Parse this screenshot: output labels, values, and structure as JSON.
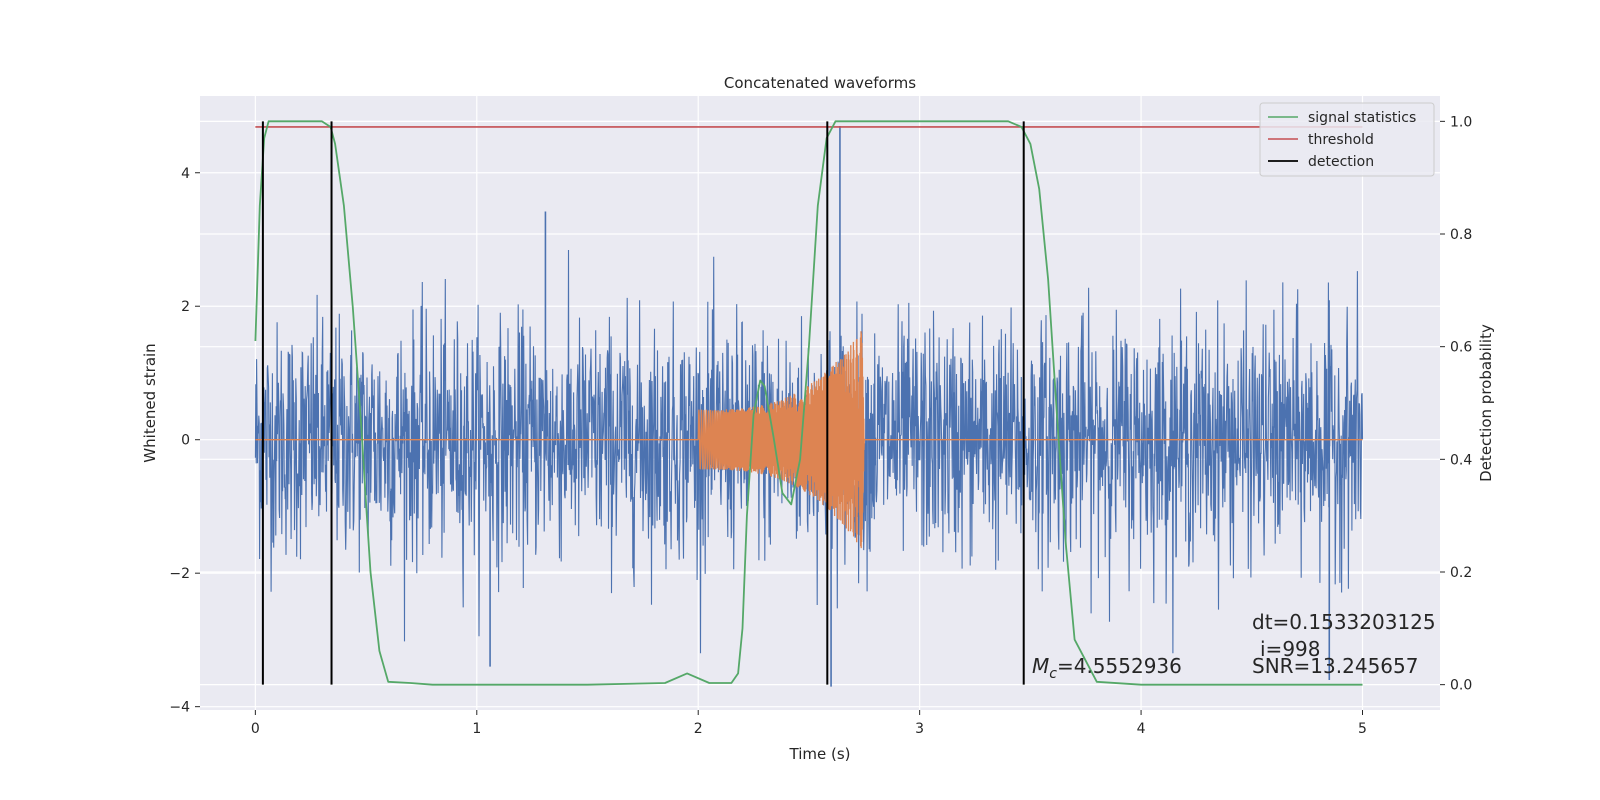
{
  "chart_data": {
    "type": "line",
    "title": "Concatenated waveforms",
    "xlabel": "Time (s)",
    "ylabel_left": "Whitened strain",
    "ylabel_right": "Detection probability",
    "xlim": [
      -0.25,
      5.35
    ],
    "ylim_left": [
      -4.05,
      5.15
    ],
    "ylim_right": [
      -0.045,
      1.045
    ],
    "x_ticks": [
      0,
      1,
      2,
      3,
      4,
      5
    ],
    "y_ticks_left": [
      -4,
      -2,
      0,
      2,
      4
    ],
    "y_ticks_right": [
      0.0,
      0.2,
      0.4,
      0.6,
      0.8,
      1.0
    ],
    "tick_labels": {
      "x": [
        "0",
        "1",
        "2",
        "3",
        "4",
        "5"
      ],
      "y_left": [
        "−4",
        "−2",
        "0",
        "2",
        "4"
      ],
      "y_right": [
        "0.0",
        "0.2",
        "0.4",
        "0.6",
        "0.8",
        "1.0"
      ]
    },
    "grid": true,
    "legend_position": "top-right",
    "series": [
      {
        "name": "signal statistics",
        "axis": "right",
        "color": "#55a868",
        "x": [
          0,
          0.02,
          0.04,
          0.06,
          0.1,
          0.2,
          0.3,
          0.34,
          0.36,
          0.4,
          0.44,
          0.48,
          0.5,
          0.52,
          0.56,
          0.6,
          0.7,
          0.8,
          1.0,
          1.5,
          1.85,
          1.95,
          2.05,
          2.15,
          2.18,
          2.2,
          2.22,
          2.25,
          2.28,
          2.3,
          2.34,
          2.38,
          2.42,
          2.46,
          2.5,
          2.54,
          2.58,
          2.62,
          2.7,
          3.0,
          3.4,
          3.46,
          3.5,
          3.54,
          3.58,
          3.62,
          3.66,
          3.7,
          3.8,
          4.0,
          5.0
        ],
        "values": [
          0.61,
          0.85,
          0.97,
          1.0,
          1.0,
          1.0,
          1.0,
          0.99,
          0.96,
          0.85,
          0.67,
          0.45,
          0.32,
          0.2,
          0.06,
          0.005,
          0.003,
          0.0,
          0.0,
          0.0,
          0.003,
          0.02,
          0.003,
          0.003,
          0.02,
          0.1,
          0.3,
          0.48,
          0.54,
          0.53,
          0.44,
          0.34,
          0.32,
          0.4,
          0.6,
          0.85,
          0.97,
          1.0,
          1.0,
          1.0,
          1.0,
          0.99,
          0.96,
          0.88,
          0.72,
          0.48,
          0.25,
          0.08,
          0.005,
          0.0,
          0.0
        ]
      },
      {
        "name": "threshold",
        "axis": "right",
        "color": "#c44e52",
        "x": [
          0,
          5.0
        ],
        "values": [
          0.99,
          0.99
        ]
      },
      {
        "name": "detection",
        "axis": "right",
        "color": "#000000",
        "vlines_x": [
          0.034,
          0.344,
          2.583,
          3.47
        ],
        "vlines_range": [
          0.0,
          1.0
        ]
      },
      {
        "axis": "left",
        "color": "#4c72b0",
        "kind": "noise strain",
        "x_range": [
          0,
          5.0
        ],
        "envelope_typical": 1.4,
        "peak_values": [
          {
            "x": 1.31,
            "y": 3.42
          },
          {
            "x": 2.64,
            "y": 4.7
          },
          {
            "x": 2.6,
            "y": -3.7
          },
          {
            "x": 1.06,
            "y": -3.4
          },
          {
            "x": 4.85,
            "y": -3.6
          }
        ]
      },
      {
        "axis": "left",
        "color": "#dd8452",
        "kind": "injected chirp",
        "x_range": [
          2.0,
          2.75
        ],
        "amplitude_start": 0.45,
        "amplitude_end": 1.7
      }
    ],
    "annotations": {
      "dt": "dt=0.1533203125",
      "i": "i=998",
      "snr": "SNR=13.245657",
      "mc_symbol": "M",
      "mc_subscript": "c",
      "mc_value": "=4.5552936"
    }
  }
}
